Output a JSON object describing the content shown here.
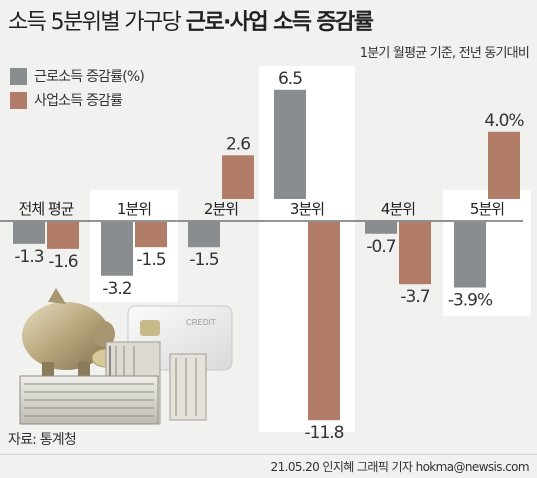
{
  "header": {
    "title_plain": "소득 5분위별 가구당 ",
    "title_bold": "근로·사업 소득 증감률",
    "subtitle": "1분기 월평균 기준, 전년 동기대비"
  },
  "legend": [
    {
      "label": "근로소득 증감률(%)",
      "color": "#8a8d8f"
    },
    {
      "label": "사업소득 증감률",
      "color": "#b17d69"
    }
  ],
  "chart_data": {
    "type": "bar",
    "categories": [
      "전체 평균",
      "1분위",
      "2분위",
      "3분위",
      "4분위",
      "5분위"
    ],
    "series": [
      {
        "name": "근로소득 증감률(%)",
        "values": [
          -1.3,
          -3.2,
          -1.5,
          6.5,
          -0.7,
          -3.9
        ],
        "labels": [
          "-1.3",
          "-3.2",
          "-1.5",
          "6.5",
          "-0.7",
          "-3.9%"
        ],
        "color": "#8a8d8f"
      },
      {
        "name": "사업소득 증감률",
        "values": [
          -1.6,
          -1.5,
          2.6,
          -11.8,
          -3.7,
          4.0
        ],
        "labels": [
          "-1.6",
          "-1.5",
          "2.6",
          "-11.8",
          "-3.7",
          "4.0%"
        ],
        "color": "#b17d69"
      }
    ],
    "highlight_categories": [
      "1분위",
      "3분위",
      "5분위"
    ],
    "ylim": [
      -12,
      7
    ],
    "grid": false
  },
  "illustration": {
    "card_text": "CREDIT"
  },
  "footer": {
    "source": "자료: 통계청",
    "credit": "21.05.20 인지혜 그래픽 기자 hokma@newsis.com"
  }
}
